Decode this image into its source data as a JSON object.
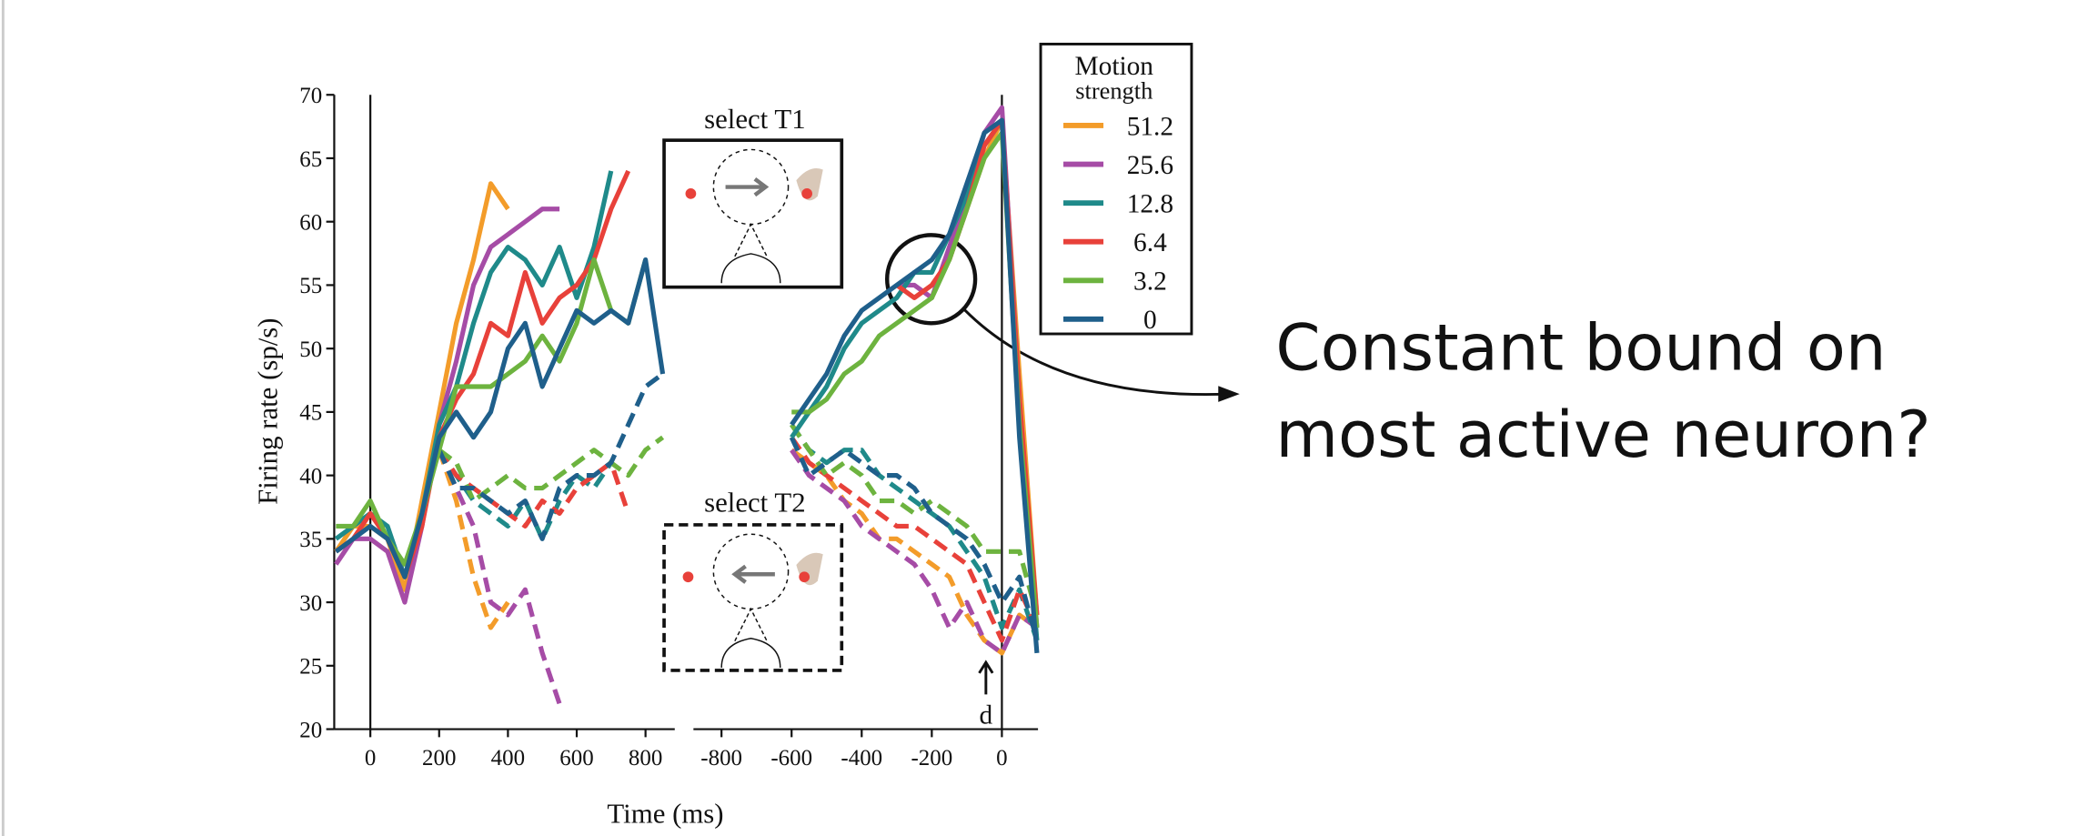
{
  "chart_data": {
    "type": "line",
    "ylabel": "Firing rate (sp/s)",
    "xlabel": "Time (ms)",
    "ylim": [
      20,
      70
    ],
    "yticks": [
      20,
      25,
      30,
      35,
      40,
      45,
      50,
      55,
      60,
      65,
      70
    ],
    "legend_title": [
      "Motion",
      "strength"
    ],
    "annotations": {
      "inset_top": "select T1",
      "inset_bottom": "select T2",
      "marker": "d",
      "callout": [
        "Constant bound on",
        "most active neuron?"
      ]
    },
    "panels": [
      {
        "xlim": [
          -105,
          885
        ],
        "xticks": [
          0,
          200,
          400,
          600,
          800
        ],
        "x": [
          -100,
          -50,
          0,
          50,
          100,
          150,
          200,
          250,
          300,
          350,
          400,
          450,
          500,
          550,
          600,
          650,
          700,
          750,
          800,
          850
        ]
      },
      {
        "xlim": [
          -880,
          103
        ],
        "xticks": [
          -800,
          -600,
          -400,
          -200,
          0
        ],
        "x": [
          -600,
          -550,
          -500,
          -450,
          -400,
          -350,
          -300,
          -250,
          -200,
          -150,
          -100,
          -50,
          0,
          50,
          100
        ]
      }
    ],
    "series": [
      {
        "name": "51.2",
        "color": "#f39c2a",
        "panels": [
          {
            "solid": [
              34,
              36,
              36,
              35,
              31,
              38,
              45,
              52,
              57,
              63,
              61,
              null,
              null,
              null,
              null,
              null,
              null,
              null,
              null,
              null
            ],
            "dashed": [
              null,
              null,
              null,
              null,
              null,
              null,
              42,
              38,
              32,
              28,
              30,
              null,
              null,
              null,
              null,
              null,
              null,
              null,
              null,
              null
            ]
          },
          {
            "solid": [
              null,
              null,
              null,
              null,
              null,
              null,
              null,
              54,
              55,
              57,
              61,
              65,
              68,
              48,
              29
            ],
            "dashed": [
              42,
              41,
              40,
              38,
              37,
              35,
              35,
              34,
              33,
              32,
              29,
              27,
              26,
              29,
              28
            ]
          }
        ]
      },
      {
        "name": "25.6",
        "color": "#a64ca6",
        "panels": [
          {
            "solid": [
              33,
              35,
              35,
              34,
              30,
              36,
              44,
              49,
              55,
              58,
              59,
              60,
              61,
              61,
              null,
              null,
              null,
              null,
              null,
              null
            ],
            "dashed": [
              null,
              null,
              null,
              null,
              null,
              null,
              42,
              39,
              36,
              30,
              29,
              31,
              26,
              22,
              null,
              null,
              null,
              null,
              null,
              null
            ]
          },
          {
            "solid": [
              null,
              null,
              null,
              null,
              null,
              null,
              55,
              55,
              54,
              58,
              62,
              67,
              69,
              46,
              28
            ],
            "dashed": [
              42,
              40,
              39,
              38,
              36,
              35,
              34,
              33,
              31,
              28,
              30,
              27,
              26,
              29,
              28
            ]
          }
        ]
      },
      {
        "name": "12.8",
        "color": "#1f8a8a",
        "panels": [
          {
            "solid": [
              35,
              36,
              37,
              36,
              32,
              37,
              44,
              47,
              52,
              56,
              58,
              57,
              55,
              58,
              54,
              58,
              64,
              null,
              null,
              null
            ],
            "dashed": [
              null,
              null,
              null,
              null,
              null,
              null,
              42,
              40,
              38,
              37,
              36,
              38,
              35,
              38,
              40,
              39,
              41,
              null,
              null,
              null
            ]
          },
          {
            "solid": [
              43,
              45,
              47,
              50,
              52,
              53,
              54,
              56,
              56,
              59,
              62,
              66,
              68,
              44,
              27
            ],
            "dashed": [
              44,
              42,
              41,
              42,
              42,
              40,
              39,
              38,
              37,
              36,
              34,
              32,
              28,
              31,
              27
            ]
          }
        ]
      },
      {
        "name": "6.4",
        "color": "#e8413a",
        "panels": [
          {
            "solid": [
              34,
              35,
              37,
              35,
              32,
              36,
              43,
              46,
              48,
              52,
              51,
              56,
              52,
              54,
              55,
              57,
              61,
              64,
              null,
              null
            ],
            "dashed": [
              null,
              null,
              null,
              null,
              null,
              null,
              42,
              40,
              39,
              38,
              37,
              36,
              38,
              37,
              39,
              40,
              41,
              37,
              null,
              null
            ]
          },
          {
            "solid": [
              null,
              null,
              null,
              null,
              null,
              null,
              55,
              54,
              55,
              57,
              61,
              66,
              68,
              46,
              29
            ],
            "dashed": [
              43,
              41,
              40,
              39,
              38,
              37,
              36,
              36,
              35,
              34,
              33,
              30,
              27,
              31,
              28
            ]
          }
        ]
      },
      {
        "name": "3.2",
        "color": "#6db33f",
        "panels": [
          {
            "solid": [
              36,
              36,
              38,
              35,
              33,
              37,
              42,
              47,
              47,
              47,
              48,
              49,
              51,
              49,
              52,
              57,
              53,
              52,
              57,
              null
            ],
            "dashed": [
              null,
              null,
              null,
              null,
              null,
              null,
              42,
              41,
              38,
              39,
              40,
              39,
              39,
              40,
              41,
              42,
              41,
              40,
              42,
              43
            ]
          },
          {
            "solid": [
              45,
              45,
              46,
              48,
              49,
              51,
              52,
              53,
              54,
              57,
              61,
              65,
              67,
              44,
              28
            ],
            "dashed": [
              44,
              42,
              40,
              41,
              40,
              38,
              38,
              37,
              38,
              37,
              36,
              34,
              34,
              34,
              29
            ]
          }
        ]
      },
      {
        "name": "0",
        "color": "#1f5f8b",
        "panels": [
          {
            "solid": [
              34,
              35,
              36,
              35,
              32,
              37,
              43,
              45,
              43,
              45,
              50,
              52,
              47,
              50,
              53,
              52,
              53,
              52,
              57,
              48
            ],
            "dashed": [
              null,
              null,
              null,
              null,
              null,
              null,
              42,
              39,
              39,
              38,
              37,
              38,
              35,
              39,
              40,
              40,
              41,
              44,
              47,
              48
            ]
          },
          {
            "solid": [
              44,
              46,
              48,
              51,
              53,
              54,
              55,
              56,
              57,
              59,
              63,
              67,
              68,
              43,
              26
            ],
            "dashed": [
              43,
              40,
              41,
              42,
              41,
              40,
              40,
              39,
              37,
              36,
              35,
              33,
              30,
              32,
              27
            ]
          }
        ]
      }
    ]
  }
}
